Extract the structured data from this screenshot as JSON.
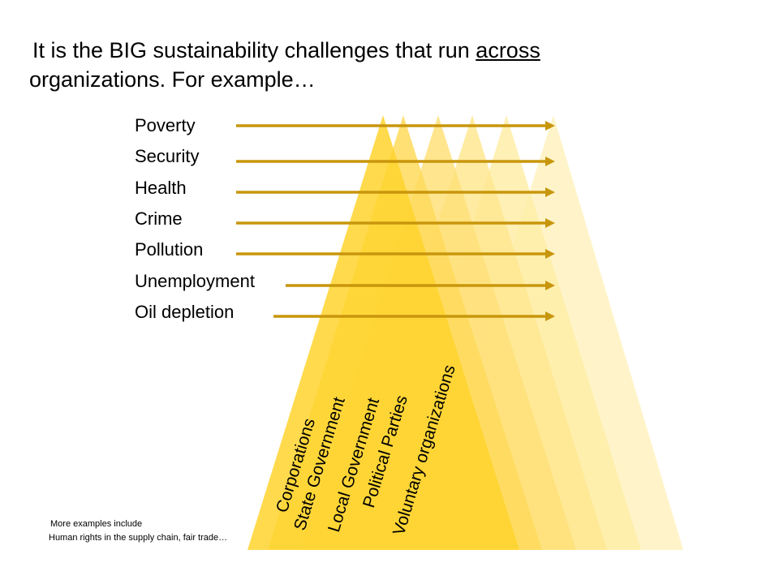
{
  "title": {
    "part1": "It is the BIG sustainability challenges that run ",
    "emphasis": "across",
    "part2": " organizations. For example…"
  },
  "challenges": [
    "Poverty",
    "Security",
    "Health",
    "Crime",
    "Pollution",
    "Unemployment",
    "Oil depletion"
  ],
  "organizations": [
    "Corporations",
    "State Government",
    "Local Government",
    "Political Parties",
    "Voluntary organizations"
  ],
  "footnote": {
    "line1": "More examples include",
    "line2": "Human rights in the supply chain, fair trade…"
  },
  "colors": {
    "arrow": "#C8960C",
    "triangle_outer": "#FFF3C4",
    "triangle_inner": "#FFD52E"
  }
}
